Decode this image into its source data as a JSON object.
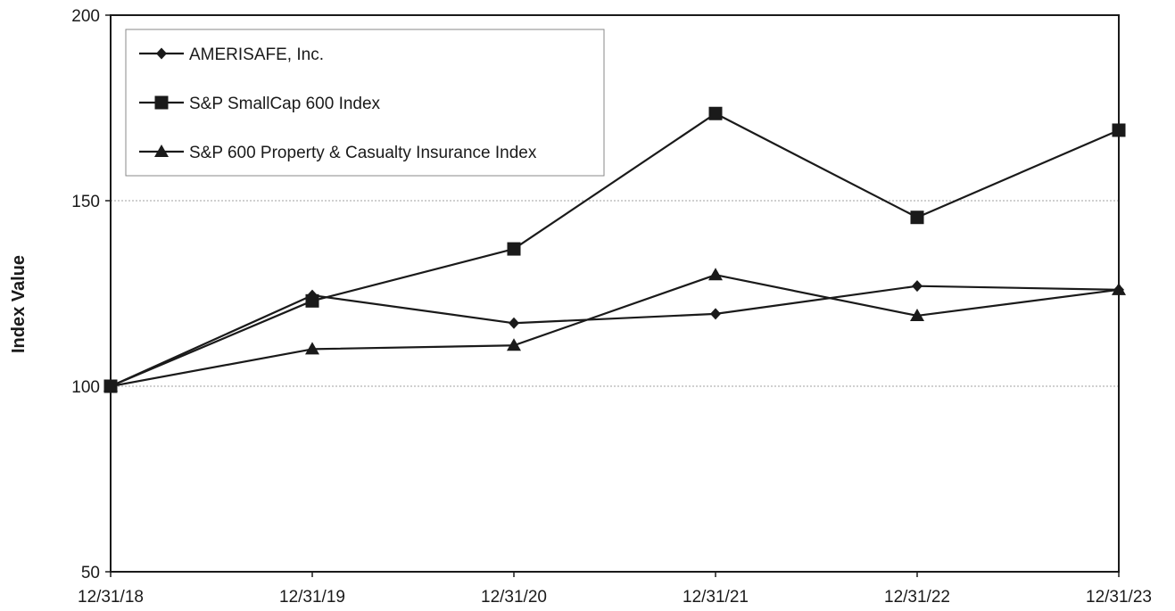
{
  "chart_data": {
    "type": "line",
    "title": "",
    "xlabel": "",
    "ylabel": "Index Value",
    "ylim": [
      50,
      200
    ],
    "yticks": [
      50,
      100,
      150,
      200
    ],
    "categories": [
      "12/31/18",
      "12/31/19",
      "12/31/20",
      "12/31/21",
      "12/31/22",
      "12/31/23"
    ],
    "grid": "horizontal dotted",
    "legend_position": "top-left",
    "series": [
      {
        "name": "AMERISAFE, Inc.",
        "marker": "diamond",
        "values": [
          100,
          124.5,
          117,
          119.5,
          127,
          126
        ]
      },
      {
        "name": "S&P SmallCap 600 Index",
        "marker": "square",
        "values": [
          100,
          123,
          137,
          173.5,
          145.5,
          169
        ]
      },
      {
        "name": "S&P 600 Property & Casualty Insurance Index",
        "marker": "triangle",
        "values": [
          100,
          110,
          111,
          130,
          119,
          126
        ]
      }
    ],
    "colors": {
      "line": "#1a1a1a",
      "grid": "#a0a0a0",
      "background": "#ffffff"
    }
  }
}
